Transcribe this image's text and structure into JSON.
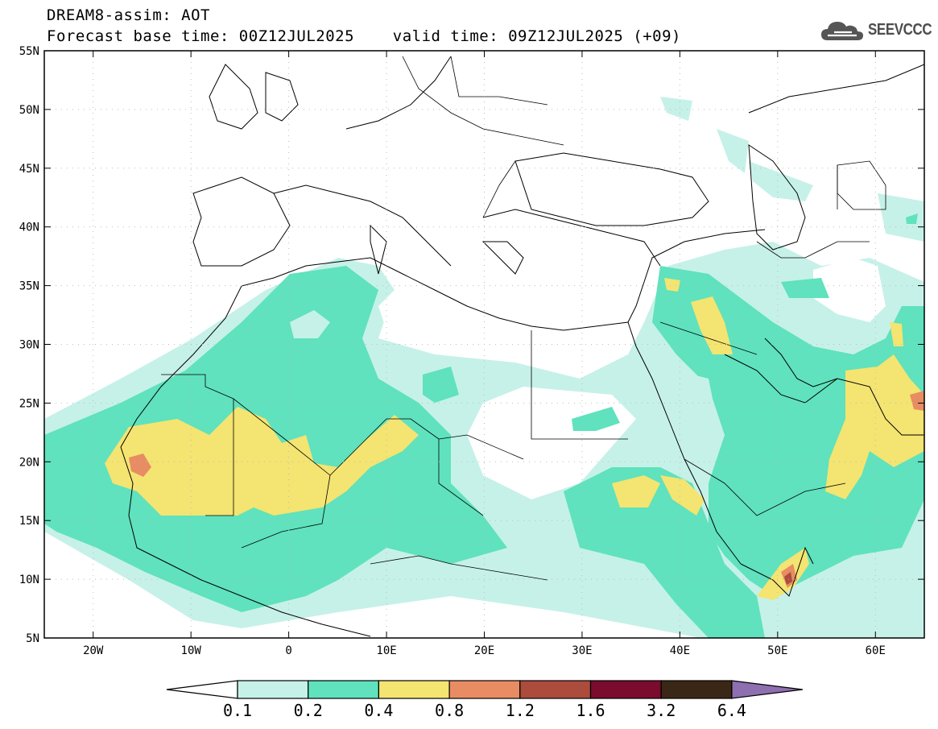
{
  "header": {
    "title_line1": "DREAM8-assim: AOT",
    "title_line2": "Forecast base time: 00Z12JUL2025    valid time: 09Z12JUL2025 (+09)"
  },
  "logo": {
    "text": "SEEVCCC",
    "icon": "cloud-icon"
  },
  "map": {
    "lat_labels": [
      "55N",
      "50N",
      "45N",
      "40N",
      "35N",
      "30N",
      "25N",
      "20N",
      "15N",
      "10N",
      "5N"
    ],
    "lon_labels": [
      "20W",
      "10W",
      "0",
      "10E",
      "20E",
      "30E",
      "40E",
      "50E",
      "60E"
    ],
    "extent": {
      "lon_min": -25,
      "lon_max": 65,
      "lat_min": 5,
      "lat_max": 55
    }
  },
  "colorbar": {
    "labels": [
      "0.1",
      "0.2",
      "0.4",
      "0.8",
      "1.2",
      "1.6",
      "3.2",
      "6.4"
    ],
    "colors": [
      "#ffffff",
      "#c6f1e8",
      "#5fe2bd",
      "#f4e471",
      "#e88c63",
      "#ab4c3c",
      "#7a0c2e",
      "#3a2716",
      "#8e6fb0"
    ]
  }
}
